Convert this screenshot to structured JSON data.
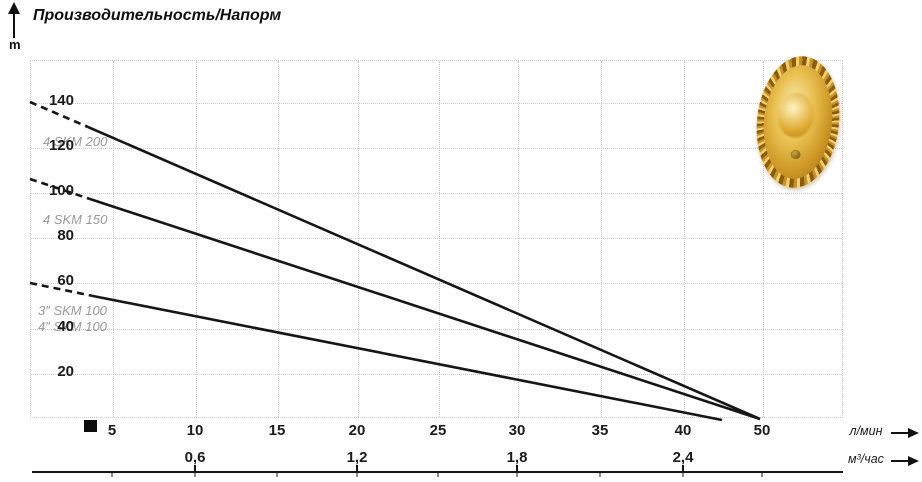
{
  "header": {
    "title": "Производительность/Напорм",
    "y_unit": "m"
  },
  "axes": {
    "y_ticks": [
      "140",
      "120",
      "100",
      "80",
      "60",
      "40",
      "20"
    ],
    "x_lmin": {
      "ticks": [
        "5",
        "10",
        "15",
        "20",
        "25",
        "30",
        "35",
        "40",
        "50"
      ],
      "unit": "л/мин"
    },
    "x_m3h": {
      "ticks": [
        "0,6",
        "1,2",
        "1,8",
        "2,4"
      ],
      "unit": "м³/час"
    }
  },
  "series_labels": [
    "4 SKM 200",
    "4 SKM 150",
    "3″ SKM 100",
    "4″ SKM 100"
  ],
  "chart_data": {
    "type": "line",
    "title": "Производительность/Напорм",
    "xlabel_primary": "л/мин",
    "xlabel_secondary": "м³/час",
    "ylabel": "m",
    "xlim_lmin": [
      0,
      50
    ],
    "ylim_m": [
      0,
      157
    ],
    "x_ticks_lmin": [
      5,
      10,
      15,
      20,
      25,
      30,
      35,
      40,
      50
    ],
    "x_ticks_m3h": [
      0.6,
      1.2,
      1.8,
      2.4
    ],
    "grid": true,
    "legend_position": "inline-labels-left",
    "series": [
      {
        "name": "4 SKM 200",
        "points_lmin_head_m": [
          [
            0,
            140
          ],
          [
            50,
            0
          ]
        ],
        "dashed_until_lmin": 3.5,
        "color": "#161616"
      },
      {
        "name": "4 SKM 150",
        "points_lmin_head_m": [
          [
            0,
            105
          ],
          [
            50,
            0
          ]
        ],
        "dashed_until_lmin": 3.5,
        "color": "#161616"
      },
      {
        "name": "3″/4″ SKM 100",
        "points_lmin_head_m": [
          [
            0,
            60
          ],
          [
            45,
            0
          ]
        ],
        "dashed_until_lmin": 4,
        "color": "#161616"
      }
    ],
    "annotations": [
      "brass impeller photo at top right"
    ]
  },
  "colors": {
    "curve": "#161616",
    "grid": "#cccccc",
    "series_label": "#9a9a9a",
    "axis_line": "#151515",
    "impeller_gold": "#d9a833"
  }
}
